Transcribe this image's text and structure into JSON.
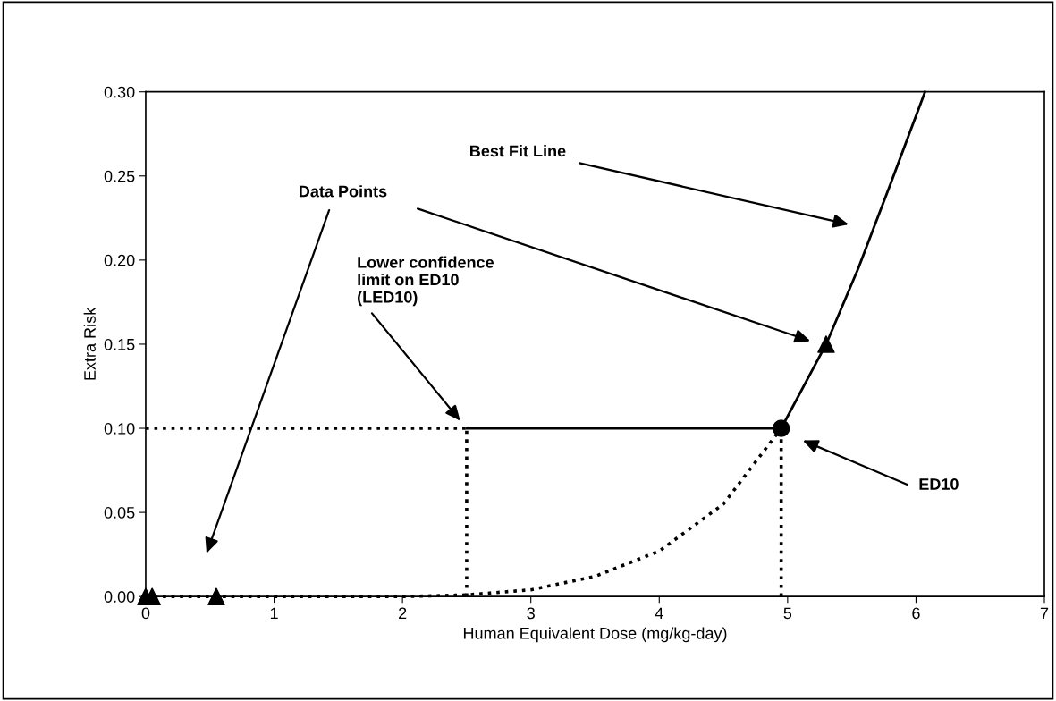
{
  "chart_data": {
    "type": "line",
    "xlabel": "Human Equivalent Dose (mg/kg-day)",
    "ylabel": "Extra Risk",
    "xlim": [
      0,
      7
    ],
    "xticks": [
      0,
      1,
      2,
      3,
      4,
      5,
      6,
      7
    ],
    "ylim": [
      0,
      0.3
    ],
    "yticks": [
      {
        "value": 0,
        "label": "0.00"
      },
      {
        "value": 0.05,
        "label": "0.05"
      },
      {
        "value": 0.1,
        "label": "0.10"
      },
      {
        "value": 0.15,
        "label": "0.15"
      },
      {
        "value": 0.2,
        "label": "0.20"
      },
      {
        "value": 0.25,
        "label": "0.25"
      },
      {
        "value": 0.3,
        "label": "0.30"
      }
    ],
    "grid": false,
    "series": [
      {
        "color": "#000000",
        "line_style": "dotted",
        "marker": "none",
        "x": [
          0,
          2.0,
          2.5,
          3.0,
          3.5,
          4.0,
          4.5,
          4.95
        ],
        "values": [
          0,
          0,
          0.001,
          0.004,
          0.012,
          0.027,
          0.055,
          0.1
        ]
      },
      {
        "color": "#000000",
        "line_style": "solid",
        "marker": "none",
        "x": [
          4.95,
          5.3,
          5.55,
          5.8,
          6.07
        ],
        "values": [
          0.1,
          0.15,
          0.195,
          0.245,
          0.3
        ]
      },
      {
        "color": "#000000",
        "line_style": "solid",
        "marker": "none",
        "x": [
          2.5,
          4.95
        ],
        "values": [
          0.1,
          0.1
        ]
      },
      {
        "color": "#000000",
        "line_style": "dotted",
        "marker": "none",
        "x": [
          0,
          2.5
        ],
        "values": [
          0.1,
          0.1
        ]
      },
      {
        "color": "#000000",
        "line_style": "dotted",
        "marker": "none",
        "x": [
          2.5,
          2.5
        ],
        "values": [
          0,
          0.1
        ]
      },
      {
        "color": "#000000",
        "line_style": "dotted",
        "marker": "none",
        "x": [
          4.95,
          4.95
        ],
        "values": [
          0,
          0.1
        ]
      },
      {
        "type": "scatter",
        "color": "#000000",
        "marker": "triangle",
        "x": [
          0,
          0.05,
          0.55,
          5.3
        ],
        "values": [
          0,
          0,
          0,
          0.15
        ]
      },
      {
        "type": "scatter",
        "color": "#000000",
        "marker": "circle",
        "x": [
          4.95
        ],
        "values": [
          0.1
        ]
      }
    ],
    "annotations": [
      "Best Fit Line",
      "Data Points",
      "Lower confidence\nlimit on ED10\n(LED10)",
      "ED10"
    ]
  }
}
